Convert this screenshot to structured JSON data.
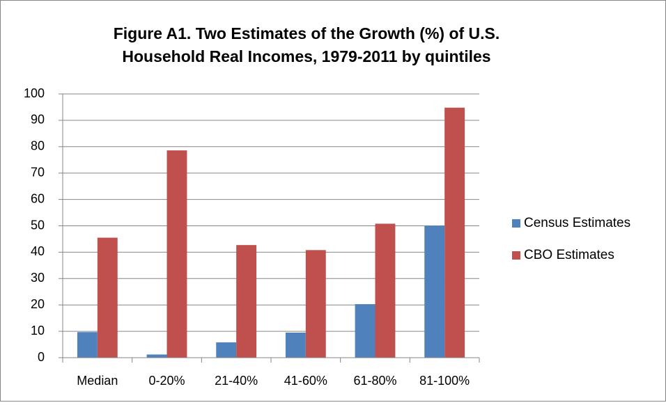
{
  "chart_data": {
    "type": "bar",
    "title": "Figure A1. Two Estimates of the Growth (%) of U.S.",
    "subtitle": "Household Real Incomes, 1979-2011 by quintiles",
    "categories": [
      "Median",
      "0-20%",
      "21-40%",
      "41-60%",
      "61-80%",
      "81-100%"
    ],
    "series": [
      {
        "name": "Census Estimates",
        "color": "#4f81bd",
        "values": [
          9.7,
          1.2,
          5.8,
          9.5,
          20.3,
          50
        ]
      },
      {
        "name": "CBO Estimates",
        "color": "#c0504d",
        "values": [
          45.5,
          78.6,
          42.7,
          40.8,
          50.8,
          94.8
        ]
      }
    ],
    "ylim": [
      0,
      100
    ],
    "yticks": [
      0,
      10,
      20,
      30,
      40,
      50,
      60,
      70,
      80,
      90,
      100
    ],
    "grid": true,
    "legend": "right"
  }
}
